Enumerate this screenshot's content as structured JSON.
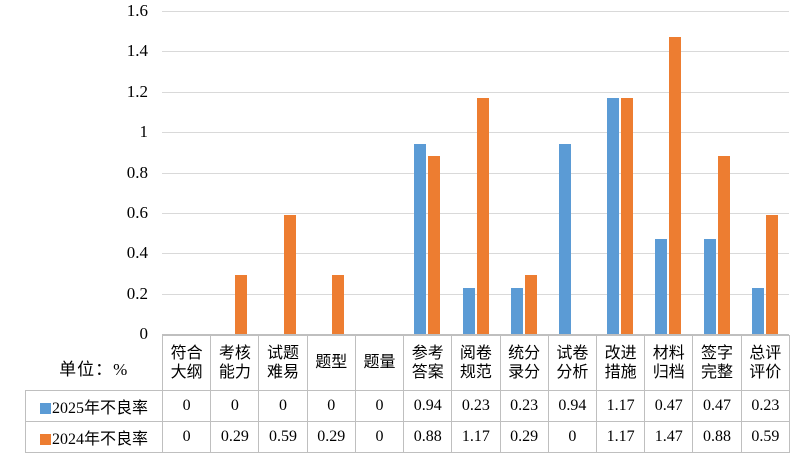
{
  "colors": {
    "series_2025": "#5B9BD5",
    "series_2024": "#ED7D31",
    "gridline": "#D9D9D9",
    "axis_line": "#BFBFBF",
    "table_border": "#BFBFBF",
    "text": "#000000",
    "background": "#FFFFFF"
  },
  "chart_data": {
    "type": "bar",
    "title": "",
    "xlabel": "",
    "ylabel": "",
    "unit_label": "单位：%",
    "categories": [
      "符合\n大纲",
      "考核\n能力",
      "试题\n难易",
      "题型",
      "题量",
      "参考\n答案",
      "阅卷\n规范",
      "统分\n录分",
      "试卷\n分析",
      "改进\n措施",
      "材料\n归档",
      "签字\n完整",
      "总评\n评价"
    ],
    "series": [
      {
        "name": "2025年不良率",
        "color": "#5B9BD5",
        "values": [
          0,
          0,
          0,
          0,
          0,
          0.94,
          0.23,
          0.23,
          0.94,
          1.17,
          0.47,
          0.47,
          0.23
        ]
      },
      {
        "name": "2024年不良率",
        "color": "#ED7D31",
        "values": [
          0,
          0.29,
          0.59,
          0.29,
          0,
          0.88,
          1.17,
          0.29,
          0,
          1.17,
          1.47,
          0.88,
          0.59
        ]
      }
    ],
    "ylim": [
      0,
      1.6
    ],
    "yticks": [
      "1.6",
      "1.4",
      "1.2",
      "1",
      "0.8",
      "0.6",
      "0.4",
      "0.2",
      "0"
    ],
    "grid": true,
    "legend_position": "data-table-left",
    "data_table_shown": true
  }
}
